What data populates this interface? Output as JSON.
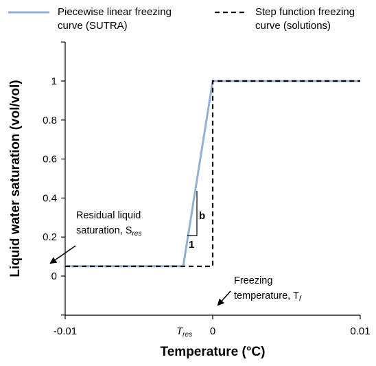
{
  "chart_data": {
    "type": "line",
    "xlabel": "Temperature (°C)",
    "ylabel": "Liquid water saturation (vol/vol)",
    "xlim": [
      -0.01,
      0.01
    ],
    "ylim": [
      -0.2,
      1.2
    ],
    "x_tick_labels": [
      "-0.01",
      "0",
      "0.01"
    ],
    "x_tick_values": [
      -0.01,
      0,
      0.01
    ],
    "y_tick_values": [
      0,
      0.2,
      0.4,
      0.6,
      0.8,
      1
    ],
    "y_tick_labels": [
      "0",
      "0.2",
      "0.4",
      "0.6",
      "0.8",
      "1"
    ],
    "series": [
      {
        "name": "Piecewise linear freezing curve (SUTRA)",
        "line1": "Piecewise linear freezing",
        "line2": "curve (SUTRA)",
        "color": "#92b1d4",
        "style": "solid",
        "x": [
          -0.01,
          -0.002,
          0,
          0.01
        ],
        "y": [
          0.05,
          0.05,
          1,
          1
        ]
      },
      {
        "name": "Step function freezing curve (solutions)",
        "line1": "Step function freezing",
        "line2": "curve (solutions)",
        "color": "#000000",
        "style": "dashed",
        "x": [
          -0.01,
          0,
          0,
          0.01
        ],
        "y": [
          0.05,
          0.05,
          1,
          1
        ]
      }
    ],
    "annotations": {
      "tres_tick_main": "T",
      "tres_tick_sub": "res",
      "residual_line1": "Residual liquid",
      "residual_line2_main": "saturation, S",
      "residual_line2_sub": "res",
      "freezing_line1": "Freezing",
      "freezing_line2_main": "temperature, T",
      "freezing_line2_sub": "f",
      "slope_rise": "b",
      "slope_run": "1"
    },
    "grid": false,
    "legend_position": "top"
  }
}
